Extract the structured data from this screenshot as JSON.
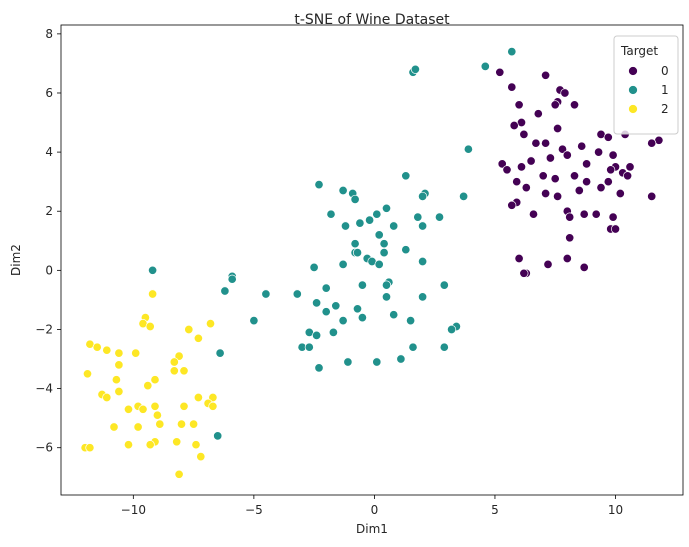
{
  "chart_data": {
    "type": "scatter",
    "title": "t-SNE of Wine Dataset",
    "xlabel": "Dim1",
    "ylabel": "Dim2",
    "xlim": [
      -13,
      12.8
    ],
    "ylim": [
      -7.6,
      8.3
    ],
    "xticks": [
      -10,
      -5,
      0,
      5,
      10
    ],
    "yticks": [
      -6,
      -4,
      -2,
      0,
      2,
      4,
      6,
      8
    ],
    "grid": false,
    "legend": {
      "title": "Target",
      "placement": "top-right"
    },
    "series": [
      {
        "name": "0",
        "color": "#440154",
        "points": [
          [
            5.2,
            6.7
          ],
          [
            5.7,
            6.2
          ],
          [
            7.1,
            6.6
          ],
          [
            7.7,
            6.1
          ],
          [
            7.9,
            6.0
          ],
          [
            6.0,
            5.6
          ],
          [
            6.8,
            5.3
          ],
          [
            7.6,
            5.7
          ],
          [
            7.5,
            5.6
          ],
          [
            8.3,
            5.6
          ],
          [
            6.1,
            5.0
          ],
          [
            5.8,
            4.9
          ],
          [
            6.2,
            4.6
          ],
          [
            7.6,
            4.8
          ],
          [
            9.4,
            4.6
          ],
          [
            9.7,
            4.5
          ],
          [
            10.4,
            4.6
          ],
          [
            11.8,
            4.4
          ],
          [
            11.5,
            4.3
          ],
          [
            6.7,
            4.3
          ],
          [
            7.1,
            4.3
          ],
          [
            7.8,
            4.1
          ],
          [
            8.6,
            4.2
          ],
          [
            8.0,
            3.9
          ],
          [
            9.3,
            4.0
          ],
          [
            9.9,
            3.9
          ],
          [
            5.3,
            3.6
          ],
          [
            6.5,
            3.7
          ],
          [
            7.3,
            3.8
          ],
          [
            8.8,
            3.6
          ],
          [
            10.0,
            3.5
          ],
          [
            10.6,
            3.5
          ],
          [
            5.5,
            3.4
          ],
          [
            6.1,
            3.5
          ],
          [
            7.0,
            3.2
          ],
          [
            8.3,
            3.2
          ],
          [
            9.8,
            3.4
          ],
          [
            10.3,
            3.3
          ],
          [
            10.5,
            3.2
          ],
          [
            5.9,
            3.0
          ],
          [
            7.5,
            3.1
          ],
          [
            8.8,
            3.0
          ],
          [
            9.7,
            3.0
          ],
          [
            6.3,
            2.8
          ],
          [
            7.1,
            2.6
          ],
          [
            7.6,
            2.5
          ],
          [
            8.5,
            2.7
          ],
          [
            9.4,
            2.8
          ],
          [
            10.2,
            2.6
          ],
          [
            11.5,
            2.5
          ],
          [
            5.9,
            2.3
          ],
          [
            5.7,
            2.2
          ],
          [
            6.6,
            1.9
          ],
          [
            8.0,
            2.0
          ],
          [
            8.1,
            1.8
          ],
          [
            8.7,
            1.9
          ],
          [
            9.2,
            1.9
          ],
          [
            9.9,
            1.8
          ],
          [
            8.1,
            1.1
          ],
          [
            9.8,
            1.4
          ],
          [
            10.0,
            1.4
          ],
          [
            6.0,
            0.4
          ],
          [
            7.2,
            0.2
          ],
          [
            8.0,
            0.4
          ],
          [
            8.7,
            0.1
          ],
          [
            6.3,
            -0.1
          ],
          [
            6.2,
            -0.1
          ]
        ]
      },
      {
        "name": "1",
        "color": "#21918c",
        "points": [
          [
            5.7,
            7.4
          ],
          [
            4.6,
            6.9
          ],
          [
            1.6,
            6.7
          ],
          [
            1.7,
            6.8
          ],
          [
            3.9,
            4.1
          ],
          [
            1.3,
            3.2
          ],
          [
            -2.3,
            2.9
          ],
          [
            -1.3,
            2.7
          ],
          [
            -0.9,
            2.6
          ],
          [
            -0.8,
            2.4
          ],
          [
            2.1,
            2.6
          ],
          [
            2.0,
            2.5
          ],
          [
            3.7,
            2.5
          ],
          [
            0.5,
            2.1
          ],
          [
            -1.8,
            1.9
          ],
          [
            0.1,
            1.9
          ],
          [
            -0.2,
            1.7
          ],
          [
            1.8,
            1.8
          ],
          [
            2.7,
            1.8
          ],
          [
            -1.2,
            1.5
          ],
          [
            -0.6,
            1.6
          ],
          [
            0.8,
            1.5
          ],
          [
            0.2,
            1.2
          ],
          [
            2.0,
            1.5
          ],
          [
            -0.8,
            0.9
          ],
          [
            -0.3,
            0.4
          ],
          [
            1.3,
            0.7
          ],
          [
            0.4,
            0.9
          ],
          [
            -0.8,
            0.6
          ],
          [
            0.4,
            0.6
          ],
          [
            -0.7,
            0.6
          ],
          [
            -2.5,
            0.1
          ],
          [
            -1.3,
            0.2
          ],
          [
            -0.1,
            0.3
          ],
          [
            0.2,
            0.2
          ],
          [
            2.0,
            0.3
          ],
          [
            0.6,
            -0.4
          ],
          [
            -0.5,
            -0.5
          ],
          [
            0.5,
            -0.5
          ],
          [
            -2.0,
            -0.6
          ],
          [
            -4.5,
            -0.8
          ],
          [
            -3.2,
            -0.8
          ],
          [
            0.5,
            -0.9
          ],
          [
            2.0,
            -0.9
          ],
          [
            2.9,
            -0.5
          ],
          [
            -2.4,
            -1.1
          ],
          [
            -1.6,
            -1.2
          ],
          [
            -0.7,
            -1.3
          ],
          [
            -2.0,
            -1.4
          ],
          [
            -1.3,
            -1.7
          ],
          [
            -0.5,
            -1.6
          ],
          [
            1.5,
            -1.7
          ],
          [
            -5.0,
            -1.7
          ],
          [
            0.8,
            -1.5
          ],
          [
            3.4,
            -1.9
          ],
          [
            -2.7,
            -2.1
          ],
          [
            -2.4,
            -2.2
          ],
          [
            -1.7,
            -2.1
          ],
          [
            3.2,
            -2.0
          ],
          [
            -3.0,
            -2.6
          ],
          [
            -2.7,
            -2.6
          ],
          [
            1.6,
            -2.6
          ],
          [
            2.9,
            -2.6
          ],
          [
            -2.3,
            -3.3
          ],
          [
            -1.1,
            -3.1
          ],
          [
            0.1,
            -3.1
          ],
          [
            1.1,
            -3.0
          ],
          [
            -6.4,
            -2.8
          ],
          [
            -5.9,
            -0.2
          ],
          [
            -5.9,
            -0.3
          ],
          [
            -6.2,
            -0.7
          ],
          [
            -9.2,
            0.0
          ],
          [
            -6.5,
            -5.6
          ]
        ]
      },
      {
        "name": "2",
        "color": "#fde725",
        "points": [
          [
            -9.2,
            -0.8
          ],
          [
            -9.5,
            -1.6
          ],
          [
            -9.6,
            -1.8
          ],
          [
            -9.3,
            -1.9
          ],
          [
            -6.8,
            -1.8
          ],
          [
            -7.7,
            -2.0
          ],
          [
            -7.3,
            -2.3
          ],
          [
            -11.8,
            -2.5
          ],
          [
            -11.5,
            -2.6
          ],
          [
            -11.1,
            -2.7
          ],
          [
            -10.6,
            -2.8
          ],
          [
            -9.9,
            -2.8
          ],
          [
            -8.1,
            -2.9
          ],
          [
            -8.3,
            -3.1
          ],
          [
            -10.6,
            -3.2
          ],
          [
            -7.9,
            -3.4
          ],
          [
            -8.3,
            -3.4
          ],
          [
            -9.1,
            -3.7
          ],
          [
            -10.7,
            -3.7
          ],
          [
            -9.4,
            -3.9
          ],
          [
            -11.9,
            -3.5
          ],
          [
            -10.6,
            -4.1
          ],
          [
            -11.3,
            -4.2
          ],
          [
            -11.1,
            -4.3
          ],
          [
            -6.7,
            -4.3
          ],
          [
            -7.3,
            -4.3
          ],
          [
            -6.9,
            -4.5
          ],
          [
            -6.7,
            -4.6
          ],
          [
            -7.9,
            -4.6
          ],
          [
            -9.1,
            -4.6
          ],
          [
            -9.8,
            -4.6
          ],
          [
            -10.2,
            -4.7
          ],
          [
            -9.6,
            -4.7
          ],
          [
            -9.0,
            -4.9
          ],
          [
            -8.9,
            -5.2
          ],
          [
            -8.0,
            -5.2
          ],
          [
            -7.5,
            -5.2
          ],
          [
            -9.8,
            -5.3
          ],
          [
            -10.8,
            -5.3
          ],
          [
            -9.1,
            -5.8
          ],
          [
            -10.2,
            -5.9
          ],
          [
            -9.3,
            -5.9
          ],
          [
            -8.2,
            -5.8
          ],
          [
            -7.4,
            -5.9
          ],
          [
            -12.0,
            -6.0
          ],
          [
            -11.8,
            -6.0
          ],
          [
            -7.2,
            -6.3
          ],
          [
            -8.1,
            -6.9
          ]
        ]
      }
    ]
  }
}
